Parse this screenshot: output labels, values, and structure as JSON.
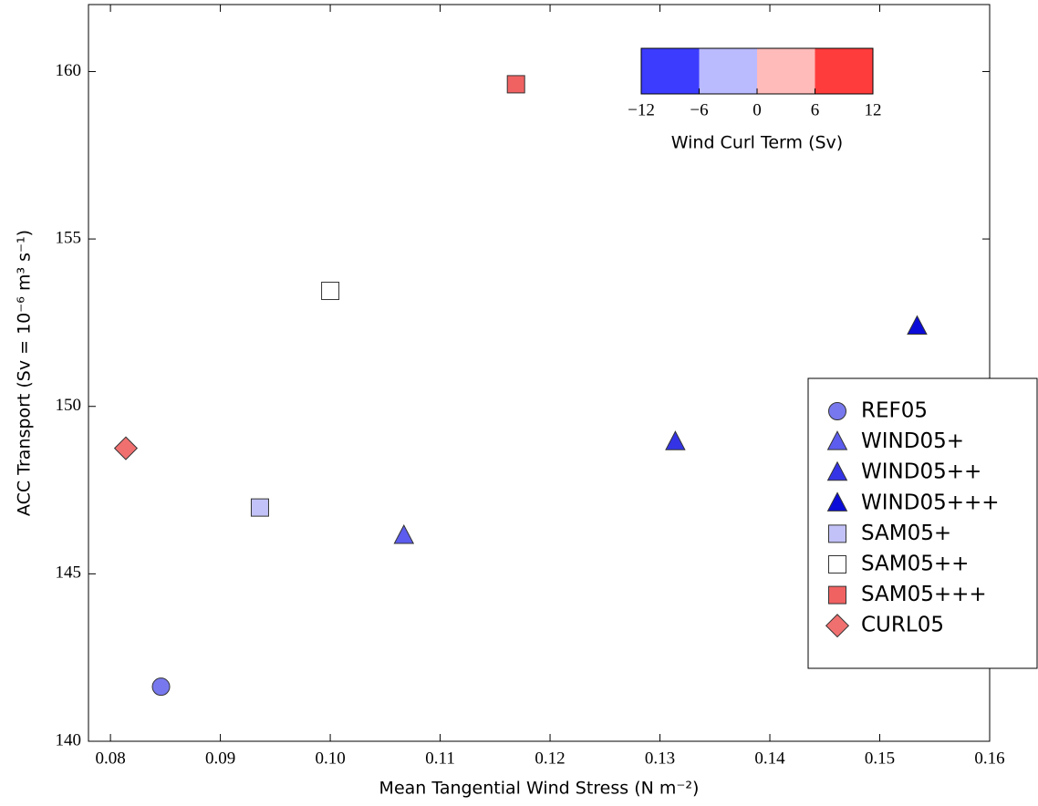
{
  "chart_data": {
    "type": "scatter",
    "xlabel": "Mean Tangential Wind Stress (N m⁻²)",
    "ylabel": "ACC Transport (Sv = 10⁻⁶ m³ s⁻¹)",
    "xlim": [
      0.078,
      0.16
    ],
    "ylim": [
      140,
      162
    ],
    "xticks": [
      0.08,
      0.09,
      {
        "value": 0.1,
        "label": "0.10"
      },
      0.11,
      0.12,
      0.13,
      0.14,
      0.15,
      0.16
    ],
    "yticks": [
      140,
      145,
      150,
      155,
      160
    ],
    "series": [
      {
        "name": "REF05",
        "marker": "circle",
        "color": "#7878ee",
        "x": [
          0.0846
        ],
        "values": [
          141.63
        ]
      },
      {
        "name": "WIND05+",
        "marker": "triangle",
        "color": "#5c5cee",
        "x": [
          0.1067
        ],
        "values": [
          146.14
        ]
      },
      {
        "name": "WIND05++",
        "marker": "triangle",
        "color": "#3434e6",
        "x": [
          0.1314
        ],
        "values": [
          148.94
        ]
      },
      {
        "name": "WIND05+++",
        "marker": "triangle",
        "color": "#0c0cd8",
        "x": [
          0.1534
        ],
        "values": [
          152.39
        ]
      },
      {
        "name": "SAM05+",
        "marker": "square",
        "color": "#c2c2f8",
        "x": [
          0.0936
        ],
        "values": [
          146.98
        ]
      },
      {
        "name": "SAM05++",
        "marker": "square",
        "color": "#ffffff",
        "x": [
          0.1
        ],
        "values": [
          153.45
        ]
      },
      {
        "name": "SAM05+++",
        "marker": "square",
        "color": "#f06262",
        "x": [
          0.1169
        ],
        "values": [
          159.62
        ]
      },
      {
        "name": "CURL05",
        "marker": "diamond",
        "color": "#f07070",
        "x": [
          0.0814
        ],
        "values": [
          148.75
        ]
      }
    ],
    "legend": "right",
    "colorbar": {
      "label": "Wind Curl Term (Sv)",
      "lim": [
        -12,
        12
      ],
      "colors": [
        "#3c3cff",
        "#babaff",
        "#ffbaba",
        "#ff3c3c"
      ],
      "ticks": [
        {
          "value": -12,
          "label": "−12"
        },
        {
          "value": -6,
          "label": "−6"
        },
        0,
        6,
        12
      ]
    }
  }
}
